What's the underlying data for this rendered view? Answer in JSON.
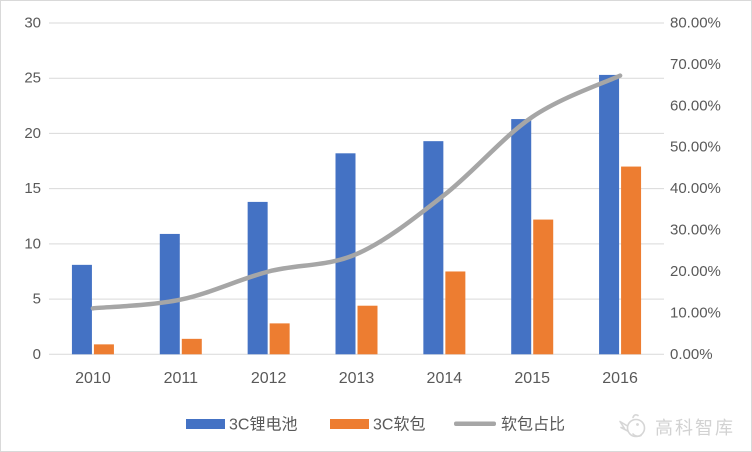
{
  "chart_data": {
    "type": "combo-bar-line",
    "title": "",
    "categories": [
      "2010",
      "2011",
      "2012",
      "2013",
      "2014",
      "2015",
      "2016"
    ],
    "series": [
      {
        "name": "3C锂电池",
        "type": "bar",
        "axis": "left",
        "color": "#4472C4",
        "values": [
          8.1,
          10.9,
          13.8,
          18.2,
          19.3,
          21.3,
          25.3
        ]
      },
      {
        "name": "3C软包",
        "type": "bar",
        "axis": "left",
        "color": "#ED7D31",
        "values": [
          0.9,
          1.4,
          2.8,
          4.4,
          7.5,
          12.2,
          17.0
        ]
      },
      {
        "name": "软包占比",
        "type": "line",
        "axis": "right",
        "color": "#A6A6A6",
        "values": [
          11.1,
          13.2,
          20.0,
          24.2,
          38.5,
          57.3,
          67.3
        ]
      }
    ],
    "left_axis": {
      "min": 0,
      "max": 30,
      "step": 5,
      "ticks": [
        "0",
        "5",
        "10",
        "15",
        "20",
        "25",
        "30"
      ]
    },
    "right_axis": {
      "min": 0,
      "max": 80,
      "step": 10,
      "ticks": [
        "0.00%",
        "10.00%",
        "20.00%",
        "30.00%",
        "40.00%",
        "50.00%",
        "60.00%",
        "70.00%",
        "80.00%"
      ]
    },
    "legend": {
      "items": [
        "3C锂电池",
        "3C软包",
        "软包占比"
      ],
      "position": "bottom"
    },
    "grid": true,
    "styles": {
      "gridline_color": "#d9d9d9",
      "tick_text_color": "#595959",
      "background": "#ffffff"
    }
  },
  "watermark": {
    "text": "高科智库"
  }
}
